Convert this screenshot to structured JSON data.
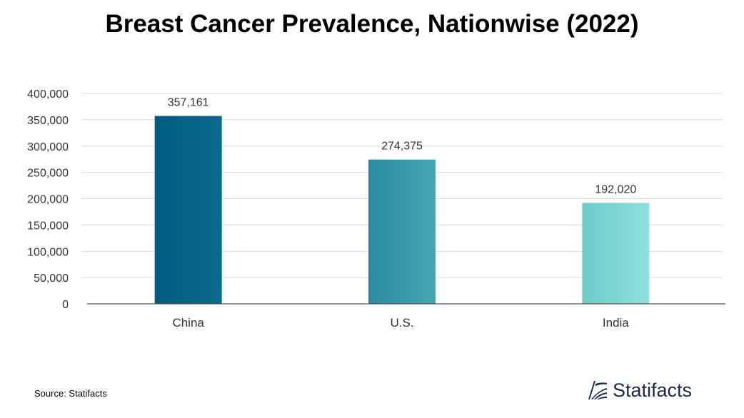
{
  "chart_data": {
    "type": "bar",
    "title": "Breast Cancer Prevalence, Nationwise (2022)",
    "categories": [
      "China",
      "U.S.",
      "India"
    ],
    "values": [
      357161,
      274375,
      192020
    ],
    "value_labels": [
      "357,161",
      "274,375",
      "192,020"
    ],
    "yticks": [
      "0",
      "50,000",
      "100,000",
      "150,000",
      "200,000",
      "250,000",
      "300,000",
      "350,000",
      "400,000"
    ],
    "ylim": [
      0,
      400000
    ],
    "ytick_step": 50000,
    "grid": true,
    "bar_colors": [
      [
        "#005c7f",
        "#0a6a8c"
      ],
      [
        "#2a8ba0",
        "#46a6b2"
      ],
      [
        "#6ecbcb",
        "#8ee0dc"
      ]
    ]
  },
  "footer": {
    "source": "Source: Statifacts",
    "brand": "Statifacts",
    "brand_color": "#1b2a4a"
  }
}
